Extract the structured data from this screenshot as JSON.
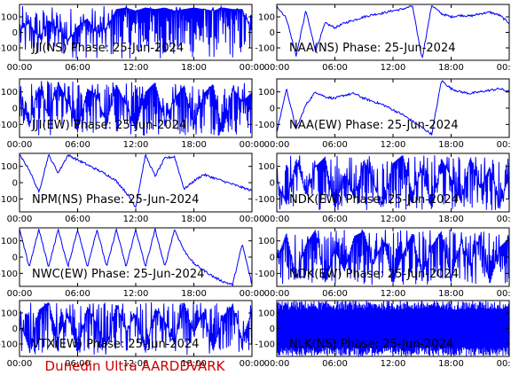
{
  "footer": "Dunedin Ultra AARDDVARK",
  "colors": {
    "trace": "#0000ff",
    "axes": "#000000",
    "label": "#000000",
    "footer": "#cc0000",
    "background": "#ffffff"
  },
  "chart_data": [
    {
      "type": "line",
      "title": "JJI(NS) Phase: 25-Jun-2024",
      "station": "JJI",
      "component": "NS",
      "x_ticks": [
        "00:00",
        "06:00",
        "12:00",
        "18:00",
        "00:00"
      ],
      "y_ticks": [
        100,
        0,
        -100
      ],
      "ylim": [
        -180,
        180
      ],
      "pattern": "dense",
      "series": [
        {
          "values": [
            10,
            60,
            -40,
            80,
            20,
            -60,
            40,
            90,
            -10,
            30,
            150,
            160,
            140,
            160,
            150,
            160,
            140,
            150,
            160,
            150,
            140,
            160,
            150,
            150,
            0
          ]
        }
      ]
    },
    {
      "type": "line",
      "title": "NAA(NS) Phase: 25-Jun-2024",
      "station": "NAA",
      "component": "NS",
      "x_ticks": [
        "00:00",
        "06:00",
        "12:00",
        "18:00",
        "00:00"
      ],
      "y_ticks": [
        100,
        0,
        -100
      ],
      "ylim": [
        -180,
        180
      ],
      "pattern": "smooth",
      "series": [
        {
          "values": [
            170,
            90,
            -150,
            140,
            -120,
            60,
            30,
            60,
            80,
            100,
            115,
            125,
            140,
            150,
            170,
            -170,
            175,
            120,
            100,
            110,
            105,
            120,
            130,
            110,
            60
          ]
        }
      ]
    },
    {
      "type": "line",
      "title": "JJI(EW) Phase: 25-Jun-2024",
      "station": "JJI",
      "component": "EW",
      "x_ticks": [
        "00:00",
        "06:00",
        "12:00",
        "18:00",
        "00:00"
      ],
      "y_ticks": [
        100,
        0,
        -100
      ],
      "ylim": [
        -180,
        180
      ],
      "pattern": "dense",
      "series": [
        {
          "values": [
            100,
            -120,
            140,
            -60,
            160,
            40,
            -150,
            120,
            80,
            -100,
            150,
            20,
            -140,
            100,
            160,
            -80,
            60,
            140,
            -120,
            90,
            150,
            -160,
            130,
            40,
            100
          ]
        }
      ]
    },
    {
      "type": "line",
      "title": "NAA(EW) Phase: 25-Jun-2024",
      "station": "NAA",
      "component": "EW",
      "x_ticks": [
        "00:00",
        "06:00",
        "12:00",
        "18:00",
        "00:00"
      ],
      "y_ticks": [
        100,
        0,
        -100
      ],
      "ylim": [
        -180,
        180
      ],
      "pattern": "smooth",
      "series": [
        {
          "values": [
            -150,
            120,
            -130,
            20,
            100,
            70,
            60,
            80,
            90,
            60,
            40,
            20,
            -10,
            -40,
            -80,
            -120,
            -160,
            170,
            120,
            100,
            90,
            100,
            110,
            120,
            100
          ]
        }
      ]
    },
    {
      "type": "line",
      "title": "NPM(NS) Phase: 25-Jun-2024",
      "station": "NPM",
      "component": "NS",
      "x_ticks": [
        "00:00",
        "06:00",
        "12:00",
        "18:00",
        "00:00"
      ],
      "y_ticks": [
        100,
        0,
        -100
      ],
      "ylim": [
        -180,
        180
      ],
      "pattern": "smooth",
      "series": [
        {
          "values": [
            170,
            80,
            -60,
            170,
            60,
            170,
            140,
            110,
            80,
            50,
            10,
            -60,
            -150,
            170,
            40,
            150,
            160,
            -40,
            10,
            50,
            30,
            10,
            -10,
            -30,
            -50
          ]
        }
      ]
    },
    {
      "type": "line",
      "title": "NDK(EW) Phase: 25-Jun-2024",
      "station": "NDK",
      "component": "EW",
      "x_ticks": [
        "00:00",
        "06:00",
        "12:00",
        "18:00",
        "00:00"
      ],
      "y_ticks": [
        100,
        0,
        -100
      ],
      "ylim": [
        -180,
        180
      ],
      "pattern": "dense",
      "series": [
        {
          "values": [
            20,
            -140,
            150,
            -80,
            100,
            160,
            -170,
            60,
            -100,
            140,
            0,
            -150,
            120,
            170,
            -60,
            80,
            -170,
            150,
            30,
            -120,
            160,
            -40,
            100,
            -150,
            40
          ]
        }
      ]
    },
    {
      "type": "line",
      "title": "NWC(EW) Phase: 25-Jun-2024",
      "station": "NWC",
      "component": "EW",
      "x_ticks": [
        "00:00",
        "06:00",
        "12:00",
        "18:00",
        "00:00"
      ],
      "y_ticks": [
        100,
        0,
        -100
      ],
      "ylim": [
        -180,
        180
      ],
      "pattern": "sawtooth",
      "series": [
        {
          "values": [
            170,
            -60,
            170,
            -60,
            170,
            -60,
            170,
            -60,
            170,
            -60,
            170,
            -60,
            170,
            -60,
            170,
            -60,
            170,
            40,
            -40,
            -80,
            -120,
            -150,
            -170,
            80,
            -170
          ]
        }
      ]
    },
    {
      "type": "line",
      "title": "NDK(EW) Phase: 25-Jun-2024",
      "station": "NDK",
      "component": "EW",
      "x_ticks": [
        "00:00",
        "06:00",
        "12:00",
        "18:00",
        "00:00"
      ],
      "y_ticks": [
        100,
        0,
        -100
      ],
      "ylim": [
        -180,
        180
      ],
      "pattern": "dense",
      "series": [
        {
          "values": [
            -20,
            150,
            -130,
            80,
            170,
            -160,
            40,
            -90,
            130,
            160,
            -50,
            110,
            -170,
            20,
            150,
            -120,
            70,
            160,
            -150,
            100,
            -60,
            140,
            -170,
            60,
            120
          ]
        }
      ]
    },
    {
      "type": "line",
      "title": "VTX(EW) Phase: 25-Jun-2024",
      "station": "VTX",
      "component": "EW",
      "x_ticks": [
        "00:00",
        "06:00",
        "12:00",
        "18:00",
        "00:00"
      ],
      "y_ticks": [
        100,
        0,
        -100
      ],
      "ylim": [
        -180,
        180
      ],
      "pattern": "dense",
      "series": [
        {
          "values": [
            60,
            -140,
            120,
            170,
            -60,
            100,
            -170,
            140,
            30,
            -120,
            160,
            -20,
            90,
            -160,
            130,
            50,
            -100,
            170,
            -40,
            110,
            -150,
            80,
            150,
            -70,
            120
          ]
        }
      ]
    },
    {
      "type": "line",
      "title": "NLK(NS) Phase: 25-Jun-2024",
      "station": "NLK",
      "component": "NS",
      "x_ticks": [
        "00:00",
        "06:00",
        "12:00",
        "18:00",
        "00:00"
      ],
      "y_ticks": [
        100,
        0,
        -100
      ],
      "ylim": [
        -180,
        180
      ],
      "pattern": "saturated",
      "series": [
        {
          "values": [
            170,
            -170,
            170,
            -170,
            170,
            -170,
            170,
            -170,
            170,
            -170,
            170,
            -170,
            170,
            -170,
            170,
            -170,
            170,
            -170,
            170,
            -170,
            170,
            -170,
            170,
            -170,
            170
          ]
        }
      ]
    }
  ]
}
